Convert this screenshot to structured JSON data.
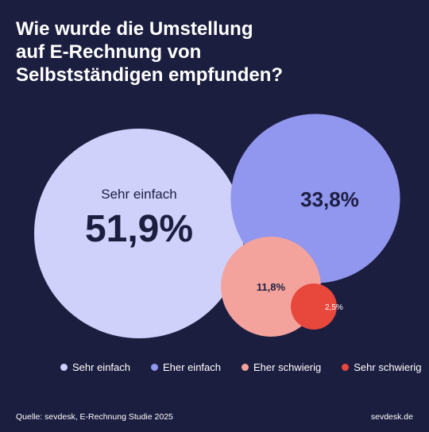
{
  "chart_data": {
    "type": "bubble",
    "title": "Wie wurde die Umstellung\nauf E-Rechnung von\nSelbstständigen empfunden?",
    "series": [
      {
        "name": "Sehr einfach",
        "value": 51.9,
        "label": "51,9%",
        "inside_label": "Sehr einfach",
        "color": "#cfd1fb"
      },
      {
        "name": "Eher einfach",
        "value": 33.8,
        "label": "33,8%",
        "color": "#9196ee"
      },
      {
        "name": "Eher schwierig",
        "value": 11.8,
        "label": "11,8%",
        "color": "#f4a39c"
      },
      {
        "name": "Sehr schwierig",
        "value": 2.5,
        "label": "2,5%",
        "color": "#e8473c"
      }
    ],
    "legend_position": "bottom"
  },
  "legend": [
    {
      "label": "Sehr einfach",
      "color": "#cfd1fb"
    },
    {
      "label": "Eher einfach",
      "color": "#9196ee"
    },
    {
      "label": "Eher schwierig",
      "color": "#f4a39c"
    },
    {
      "label": "Sehr schwierig",
      "color": "#e8473c"
    }
  ],
  "footer": {
    "source": "Quelle: sevdesk, E-Rechnung Studie 2025",
    "brand": "sevdesk.de"
  },
  "colors": {
    "background": "#1c1e40",
    "dark_text": "#1c1e40"
  }
}
